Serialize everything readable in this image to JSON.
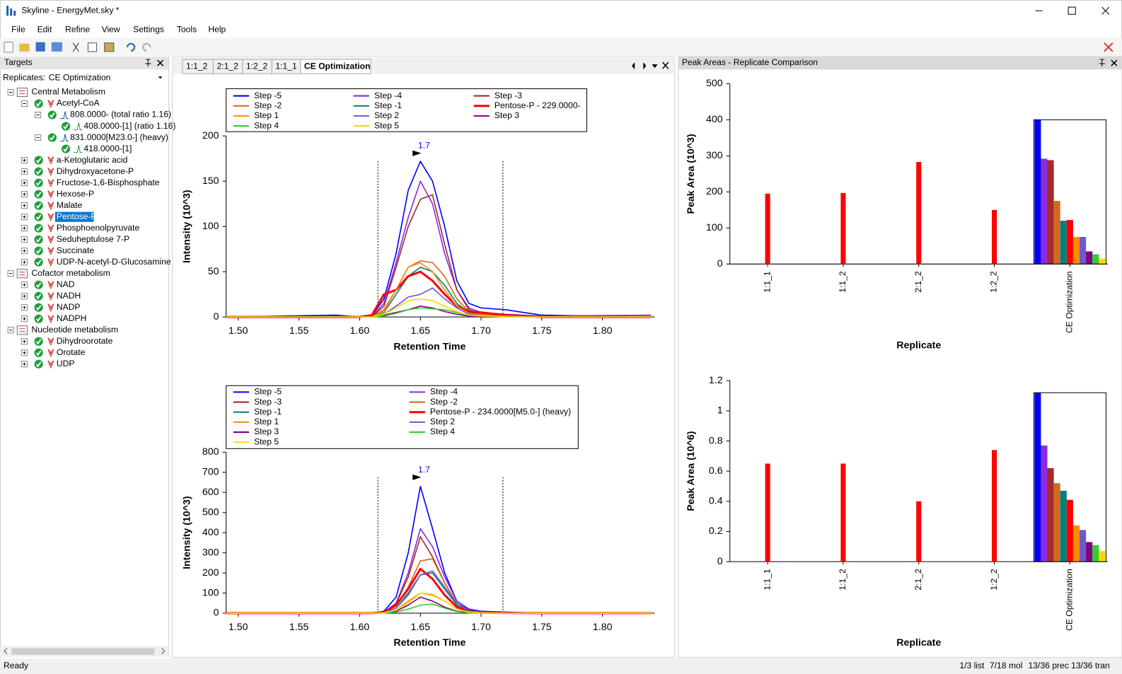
{
  "window_title": "Skyline - EnergyMet.sky *",
  "menu": [
    "File",
    "Edit",
    "Refine",
    "View",
    "Settings",
    "Tools",
    "Help"
  ],
  "targets_panel": {
    "title": "Targets",
    "replicates_label": "Replicates:",
    "replicate": "CE Optimization"
  },
  "tree": [
    {
      "label": "Central Metabolism",
      "type": "list",
      "children": [
        {
          "label": "Acetyl-CoA",
          "type": "molecule",
          "children": [
            {
              "label": "808.0000- (total ratio 1.16)",
              "type": "precursor",
              "children": [
                {
                  "label": "408.0000-[1] (ratio 1.16)",
                  "type": "transition"
                }
              ]
            },
            {
              "label": "831.0000[M23.0-] (heavy)",
              "type": "precursor",
              "children": [
                {
                  "label": "418.0000-[1]",
                  "type": "transition"
                }
              ]
            }
          ]
        },
        {
          "label": "a-Ketoglutaric acid",
          "type": "molecule"
        },
        {
          "label": "Dihydroxyacetone-P",
          "type": "molecule"
        },
        {
          "label": "Fructose-1,6-Bisphosphate",
          "type": "molecule"
        },
        {
          "label": "Hexose-P",
          "type": "molecule"
        },
        {
          "label": "Malate",
          "type": "molecule"
        },
        {
          "label": "Pentose-P",
          "type": "molecule",
          "selected": true
        },
        {
          "label": "Phosphoenolpyruvate",
          "type": "molecule"
        },
        {
          "label": "Seduheptulose 7-P",
          "type": "molecule"
        },
        {
          "label": "Succinate",
          "type": "molecule"
        },
        {
          "label": "UDP-N-acetyl-D-Glucosamine",
          "type": "molecule"
        }
      ]
    },
    {
      "label": "Cofactor metabolism",
      "type": "list",
      "children": [
        {
          "label": "NAD",
          "type": "molecule"
        },
        {
          "label": "NADH",
          "type": "molecule"
        },
        {
          "label": "NADP",
          "type": "molecule"
        },
        {
          "label": "NADPH",
          "type": "molecule"
        }
      ]
    },
    {
      "label": "Nucleotide metabolism",
      "type": "list",
      "children": [
        {
          "label": "Dihydroorotate",
          "type": "molecule"
        },
        {
          "label": "Orotate",
          "type": "molecule"
        },
        {
          "label": "UDP",
          "type": "molecule"
        }
      ]
    }
  ],
  "tabs": [
    "1:1_2",
    "2:1_2",
    "1:2_2",
    "1:1_1",
    "CE Optimization"
  ],
  "active_tab": 4,
  "peak_areas_panel": {
    "title": "Peak Areas - Replicate Comparison"
  },
  "status": {
    "left": "Ready",
    "right": [
      "1/3 list",
      "7/18 mol",
      "13/36 prec",
      "13/36 tran"
    ]
  },
  "chart_data": [
    {
      "type": "line",
      "xlabel": "Retention Time",
      "ylabel": "Intensity (10^3)",
      "xlim": [
        1.49,
        1.843
      ],
      "ylim": [
        0,
        200
      ],
      "yticks": [
        0,
        50,
        100,
        150,
        200
      ],
      "xticks": [
        {
          "value": 1.5,
          "label": "1.50"
        },
        {
          "value": 1.55,
          "label": "1.55"
        },
        {
          "value": 1.6,
          "label": "1.60"
        },
        {
          "value": 1.65,
          "label": "1.65"
        },
        {
          "value": 1.7,
          "label": "1.70"
        },
        {
          "value": 1.75,
          "label": "1.75"
        },
        {
          "value": 1.8,
          "label": "1.80"
        }
      ],
      "x": [
        1.49,
        1.58,
        1.6,
        1.61,
        1.62,
        1.63,
        1.64,
        1.65,
        1.66,
        1.67,
        1.68,
        1.69,
        1.7,
        1.72,
        1.75,
        1.84
      ],
      "peak_bounds": [
        1.615,
        1.718
      ],
      "annotations": [
        {
          "text": "1.7",
          "x": 1.653,
          "y": 173
        }
      ],
      "series": [
        {
          "name": "Step -5",
          "color": "#0000ff",
          "values": [
            0,
            2,
            0,
            1,
            20,
            70,
            140,
            172,
            150,
            100,
            40,
            15,
            10,
            8,
            2,
            0
          ]
        },
        {
          "name": "Step -4",
          "color": "#8a2be2",
          "values": [
            0,
            0,
            0,
            0,
            15,
            60,
            110,
            150,
            125,
            70,
            30,
            10,
            5,
            3,
            1,
            2
          ]
        },
        {
          "name": "Step -3",
          "color": "#a52a2a",
          "values": [
            0,
            0,
            0,
            0,
            12,
            55,
            100,
            130,
            135,
            80,
            30,
            8,
            4,
            2,
            1,
            0
          ]
        },
        {
          "name": "Step -2",
          "color": "#d2691e",
          "values": [
            0,
            0,
            0,
            0,
            8,
            30,
            55,
            62,
            60,
            45,
            20,
            6,
            3,
            1,
            0,
            0
          ]
        },
        {
          "name": "Step -1",
          "color": "#008080",
          "values": [
            0,
            0,
            0,
            0,
            5,
            25,
            45,
            55,
            50,
            35,
            15,
            5,
            2,
            1,
            0,
            0
          ]
        },
        {
          "name": "Pentose-P - 229.0000-",
          "color": "#ff0000",
          "highlight": true,
          "values": [
            0,
            0,
            0,
            2,
            25,
            30,
            45,
            50,
            40,
            25,
            12,
            6,
            5,
            2,
            0,
            0
          ]
        },
        {
          "name": "Step 1",
          "color": "#ff8c00",
          "values": [
            0,
            0,
            0,
            0,
            6,
            30,
            55,
            60,
            50,
            30,
            12,
            4,
            2,
            1,
            0,
            0
          ]
        },
        {
          "name": "Step 2",
          "color": "#6a5acd",
          "values": [
            0,
            0,
            0,
            0,
            3,
            12,
            22,
            25,
            32,
            20,
            10,
            3,
            1,
            0,
            0,
            0
          ]
        },
        {
          "name": "Step 3",
          "color": "#800080",
          "values": [
            0,
            0,
            0,
            0,
            2,
            5,
            8,
            12,
            10,
            6,
            3,
            1,
            0,
            0,
            0,
            0
          ]
        },
        {
          "name": "Step 4",
          "color": "#32cd32",
          "values": [
            0,
            0,
            0,
            0,
            1,
            4,
            8,
            10,
            9,
            8,
            5,
            2,
            1,
            0,
            0,
            0
          ]
        },
        {
          "name": "Step 5",
          "color": "#ffd700",
          "values": [
            0,
            0,
            0,
            0,
            3,
            10,
            18,
            20,
            18,
            12,
            6,
            2,
            1,
            0,
            0,
            0
          ]
        }
      ]
    },
    {
      "type": "line",
      "xlabel": "Retention Time",
      "ylabel": "Intensity (10^3)",
      "xlim": [
        1.49,
        1.843
      ],
      "ylim": [
        0,
        800
      ],
      "yticks": [
        0,
        100,
        200,
        300,
        400,
        500,
        600,
        700,
        800
      ],
      "xticks": [
        {
          "value": 1.5,
          "label": "1.50"
        },
        {
          "value": 1.55,
          "label": "1.55"
        },
        {
          "value": 1.6,
          "label": "1.60"
        },
        {
          "value": 1.65,
          "label": "1.65"
        },
        {
          "value": 1.7,
          "label": "1.70"
        },
        {
          "value": 1.75,
          "label": "1.75"
        },
        {
          "value": 1.8,
          "label": "1.80"
        }
      ],
      "x": [
        1.49,
        1.58,
        1.6,
        1.61,
        1.62,
        1.63,
        1.64,
        1.65,
        1.66,
        1.67,
        1.68,
        1.69,
        1.7,
        1.72,
        1.75,
        1.84
      ],
      "peak_bounds": [
        1.615,
        1.718
      ],
      "annotations": [
        {
          "text": "1.7",
          "x": 1.653,
          "y": 640
        }
      ],
      "series": [
        {
          "name": "Step -5",
          "color": "#0000ff",
          "values": [
            0,
            0,
            0,
            0,
            10,
            80,
            300,
            630,
            420,
            200,
            60,
            20,
            10,
            5,
            0,
            0
          ]
        },
        {
          "name": "Step -4",
          "color": "#8a2be2",
          "values": [
            0,
            0,
            0,
            0,
            5,
            50,
            200,
            420,
            330,
            180,
            60,
            15,
            8,
            3,
            0,
            0
          ]
        },
        {
          "name": "Step -3",
          "color": "#a52a2a",
          "values": [
            0,
            0,
            0,
            0,
            5,
            45,
            180,
            380,
            280,
            150,
            50,
            12,
            5,
            2,
            0,
            0
          ]
        },
        {
          "name": "Step -2",
          "color": "#d2691e",
          "values": [
            0,
            0,
            0,
            0,
            4,
            35,
            130,
            260,
            270,
            150,
            50,
            10,
            4,
            1,
            0,
            0
          ]
        },
        {
          "name": "Step -1",
          "color": "#008080",
          "values": [
            0,
            0,
            0,
            0,
            3,
            25,
            100,
            190,
            200,
            120,
            40,
            8,
            3,
            1,
            0,
            0
          ]
        },
        {
          "name": "Pentose-P - 234.0000[M5.0-] (heavy)",
          "color": "#ff0000",
          "highlight": true,
          "values": [
            0,
            0,
            0,
            0,
            5,
            40,
            120,
            220,
            170,
            90,
            30,
            8,
            3,
            1,
            0,
            0
          ]
        },
        {
          "name": "Step 1",
          "color": "#ff8c00",
          "values": [
            0,
            0,
            0,
            0,
            2,
            15,
            60,
            100,
            90,
            60,
            20,
            5,
            2,
            0,
            0,
            0
          ]
        },
        {
          "name": "Step 2",
          "color": "#6a5acd",
          "values": [
            0,
            0,
            0,
            0,
            3,
            25,
            90,
            190,
            210,
            130,
            50,
            10,
            3,
            1,
            0,
            0
          ]
        },
        {
          "name": "Step 3",
          "color": "#800080",
          "values": [
            0,
            0,
            0,
            0,
            1,
            10,
            40,
            80,
            60,
            30,
            10,
            3,
            1,
            0,
            0,
            0
          ]
        },
        {
          "name": "Step 4",
          "color": "#32cd32",
          "values": [
            0,
            0,
            0,
            0,
            1,
            5,
            20,
            40,
            45,
            25,
            8,
            2,
            1,
            0,
            0,
            0
          ]
        },
        {
          "name": "Step 5",
          "color": "#ffd700",
          "values": [
            0,
            0,
            0,
            0,
            2,
            15,
            50,
            100,
            95,
            60,
            20,
            5,
            2,
            0,
            0,
            0
          ]
        }
      ]
    },
    {
      "type": "bar",
      "xlabel": "Replicate",
      "ylabel": "Peak Area (10^3)",
      "ylim": [
        0,
        500
      ],
      "yticks": [
        0,
        100,
        200,
        300,
        400,
        500
      ],
      "categories": [
        "1:1_1",
        "1:1_2",
        "2:1_2",
        "1:2_2",
        "CE Optimization"
      ],
      "selected_category": 4,
      "series": [
        {
          "color": "#0000ff",
          "values": [
            null,
            null,
            null,
            null,
            400
          ]
        },
        {
          "color": "#8a2be2",
          "values": [
            null,
            null,
            null,
            null,
            292
          ]
        },
        {
          "color": "#a52a2a",
          "values": [
            null,
            null,
            null,
            null,
            288
          ]
        },
        {
          "color": "#d2691e",
          "values": [
            null,
            null,
            null,
            null,
            175
          ]
        },
        {
          "color": "#008080",
          "values": [
            null,
            null,
            null,
            null,
            120
          ]
        },
        {
          "color": "#ff0000",
          "values": [
            195,
            197,
            283,
            150,
            122
          ]
        },
        {
          "color": "#ff8c00",
          "values": [
            null,
            null,
            null,
            null,
            75
          ]
        },
        {
          "color": "#6a5acd",
          "values": [
            null,
            null,
            null,
            null,
            75
          ]
        },
        {
          "color": "#800080",
          "values": [
            null,
            null,
            null,
            null,
            35
          ]
        },
        {
          "color": "#32cd32",
          "values": [
            null,
            null,
            null,
            null,
            27
          ]
        },
        {
          "color": "#ffd700",
          "values": [
            null,
            null,
            null,
            null,
            15
          ]
        }
      ]
    },
    {
      "type": "bar",
      "xlabel": "Replicate",
      "ylabel": "Peak Area (10^6)",
      "ylim": [
        0,
        1.2
      ],
      "yticks": [
        0,
        0.2,
        0.4,
        0.6,
        0.8,
        1,
        1.2
      ],
      "categories": [
        "1:1_1",
        "1:1_2",
        "2:1_2",
        "1:2_2",
        "CE Optimization"
      ],
      "selected_category": 4,
      "series": [
        {
          "color": "#0000ff",
          "values": [
            null,
            null,
            null,
            null,
            1.12
          ]
        },
        {
          "color": "#8a2be2",
          "values": [
            null,
            null,
            null,
            null,
            0.77
          ]
        },
        {
          "color": "#a52a2a",
          "values": [
            null,
            null,
            null,
            null,
            0.62
          ]
        },
        {
          "color": "#d2691e",
          "values": [
            null,
            null,
            null,
            null,
            0.52
          ]
        },
        {
          "color": "#008080",
          "values": [
            null,
            null,
            null,
            null,
            0.47
          ]
        },
        {
          "color": "#ff0000",
          "values": [
            0.65,
            0.65,
            0.4,
            0.74,
            0.41
          ]
        },
        {
          "color": "#ff8c00",
          "values": [
            null,
            null,
            null,
            null,
            0.24
          ]
        },
        {
          "color": "#6a5acd",
          "values": [
            null,
            null,
            null,
            null,
            0.21
          ]
        },
        {
          "color": "#800080",
          "values": [
            null,
            null,
            null,
            null,
            0.13
          ]
        },
        {
          "color": "#32cd32",
          "values": [
            null,
            null,
            null,
            null,
            0.11
          ]
        },
        {
          "color": "#ffd700",
          "values": [
            null,
            null,
            null,
            null,
            0.07
          ]
        }
      ]
    }
  ]
}
